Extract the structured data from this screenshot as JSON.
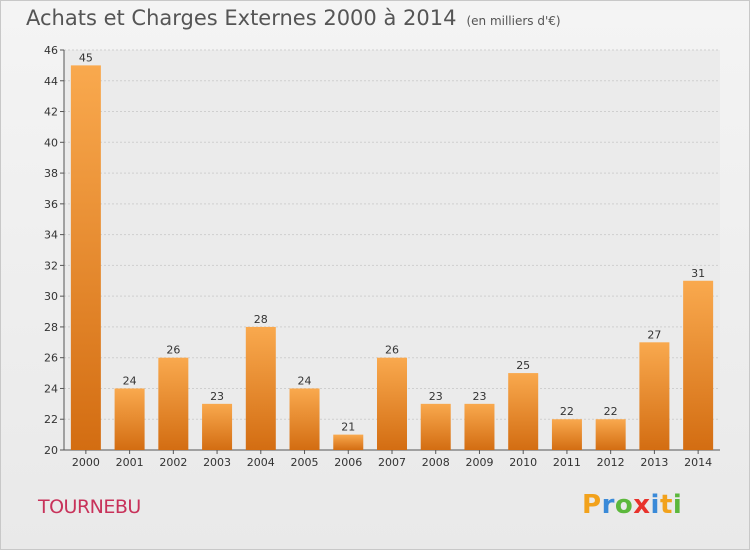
{
  "title": "Achats et Charges Externes 2000 à 2014",
  "subtitle": "(en milliers d'€)",
  "city": "TOURNEBU",
  "logo": {
    "letters": [
      "P",
      "r",
      "o",
      "x",
      "i",
      "t",
      "i"
    ],
    "colors": [
      "#f2a21c",
      "#3a8ad8",
      "#5cb83c",
      "#e8322c",
      "#3a8ad8",
      "#f2a21c",
      "#5cb83c"
    ]
  },
  "colors": {
    "bar_light": "#f9a94e",
    "bar_dark": "#d36d12",
    "title": "#555555",
    "city": "#c8325a"
  },
  "chart_data": {
    "type": "bar",
    "categories": [
      "2000",
      "2001",
      "2002",
      "2003",
      "2004",
      "2005",
      "2006",
      "2007",
      "2008",
      "2009",
      "2010",
      "2011",
      "2012",
      "2013",
      "2014"
    ],
    "values": [
      45,
      24,
      26,
      23,
      28,
      24,
      21,
      26,
      23,
      23,
      25,
      22,
      22,
      27,
      31
    ],
    "ylim": [
      20,
      46
    ],
    "yticks": [
      20,
      22,
      24,
      26,
      28,
      30,
      32,
      34,
      36,
      38,
      40,
      42,
      44,
      46
    ],
    "grid": true
  }
}
